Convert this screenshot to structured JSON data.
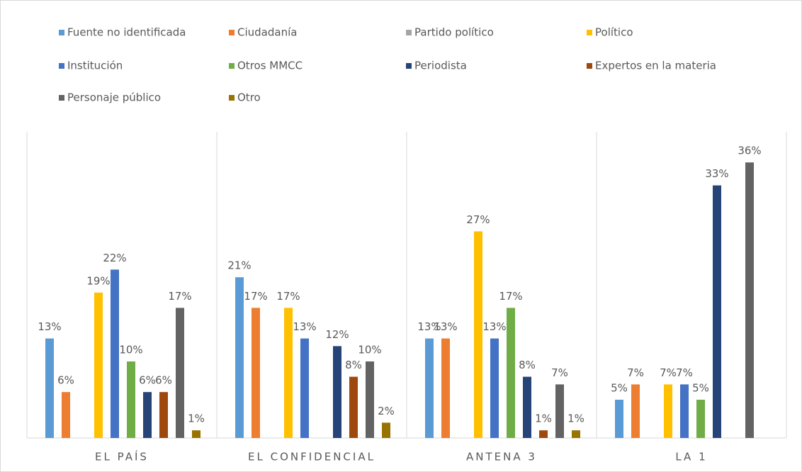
{
  "chart_data": {
    "type": "bar",
    "categories": [
      "EL PAÍS",
      "EL CONFIDENCIAL",
      "ANTENA 3",
      "LA 1"
    ],
    "ylim": [
      0,
      40
    ],
    "series": [
      {
        "name": "Fuente no identificada",
        "color": "#5b9bd5",
        "values": [
          13,
          21,
          13,
          5
        ],
        "value_labels": [
          "13%",
          "21%",
          "13%",
          "5%"
        ]
      },
      {
        "name": "Ciudadanía",
        "color": "#ed7d31",
        "values": [
          6,
          17,
          13,
          7
        ],
        "value_labels": [
          "6%",
          "17%",
          "13%",
          "7%"
        ]
      },
      {
        "name": "Partido político",
        "color": "#a5a5a5",
        "values": [
          null,
          null,
          null,
          null
        ],
        "value_labels": [
          null,
          null,
          null,
          null
        ]
      },
      {
        "name": "Político",
        "color": "#ffc000",
        "values": [
          19,
          17,
          27,
          7
        ],
        "value_labels": [
          "19%",
          "17%",
          "27%",
          "7%"
        ]
      },
      {
        "name": "Institución",
        "color": "#4472c4",
        "values": [
          22,
          13,
          13,
          7
        ],
        "value_labels": [
          "22%",
          "13%",
          "13%",
          "7%"
        ]
      },
      {
        "name": "Otros MMCC",
        "color": "#70ad47",
        "values": [
          10,
          null,
          17,
          5
        ],
        "value_labels": [
          "10%",
          null,
          "17%",
          "5%"
        ]
      },
      {
        "name": "Periodista",
        "color": "#264478",
        "values": [
          6,
          12,
          8,
          33
        ],
        "value_labels": [
          "6%",
          "12%",
          "8%",
          "33%"
        ]
      },
      {
        "name": "Expertos en la materia",
        "color": "#9e480e",
        "values": [
          6,
          8,
          1,
          null
        ],
        "value_labels": [
          "6%",
          "8%",
          "1%",
          null
        ]
      },
      {
        "name": "Personaje público",
        "color": "#636363",
        "values": [
          17,
          10,
          7,
          36
        ],
        "value_labels": [
          "17%",
          "10%",
          "7%",
          "36%"
        ]
      },
      {
        "name": "Otro",
        "color": "#997300",
        "values": [
          1,
          2,
          1,
          null
        ],
        "value_labels": [
          "1%",
          "2%",
          "1%",
          null
        ]
      }
    ]
  }
}
